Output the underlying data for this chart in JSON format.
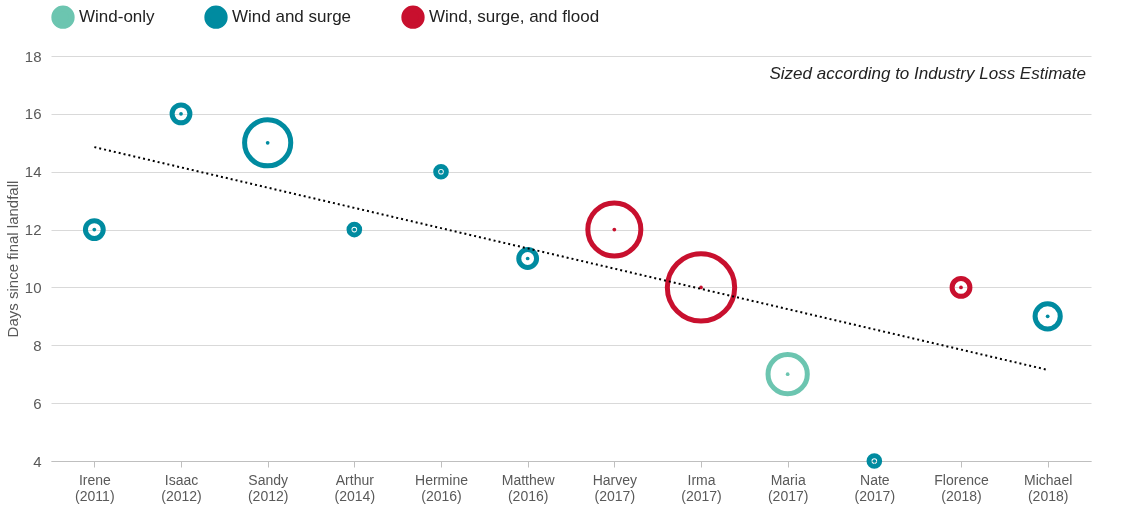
{
  "chart_data": {
    "type": "bubble",
    "ylabel": "Days since final landfall",
    "categories": [
      "Irene (2011)",
      "Isaac (2012)",
      "Sandy (2012)",
      "Arthur (2014)",
      "Hermine (2016)",
      "Matthew (2016)",
      "Harvey (2017)",
      "Irma (2017)",
      "Maria (2017)",
      "Nate (2017)",
      "Florence (2018)",
      "Michael (2018)"
    ],
    "series": [
      {
        "name": "Wind-only",
        "color": "#6cc5b0",
        "values": [
          null,
          null,
          null,
          null,
          null,
          null,
          null,
          null,
          7,
          null,
          null,
          null
        ],
        "sizes": [
          null,
          null,
          null,
          null,
          null,
          null,
          null,
          null,
          0.34,
          null,
          null,
          null
        ]
      },
      {
        "name": "Wind and surge",
        "color": "#008ba0",
        "values": [
          12,
          16,
          15,
          12,
          14,
          11,
          null,
          null,
          null,
          4,
          null,
          9
        ],
        "sizes": [
          0.07,
          0.07,
          0.47,
          0.025,
          0.025,
          0.07,
          null,
          null,
          null,
          0.025,
          null,
          0.14
        ]
      },
      {
        "name": "Wind, surge, and flood",
        "color": "#c8102e",
        "values": [
          null,
          null,
          null,
          null,
          null,
          null,
          12,
          10,
          null,
          null,
          10,
          null
        ],
        "sizes": [
          null,
          null,
          null,
          null,
          null,
          null,
          0.62,
          1,
          null,
          null,
          0.07,
          null
        ]
      },
      {
        "type": "line",
        "color": "#000000",
        "line_style": "dotted",
        "marker": "none",
        "x": [
          "Irene (2011)",
          "Michael (2018)"
        ],
        "values": [
          14.85,
          7.15
        ]
      }
    ],
    "ylim": [
      4,
      18
    ],
    "yticks": [
      4,
      6,
      8,
      10,
      12,
      14,
      16,
      18
    ],
    "grid": "y",
    "legend": "top",
    "annotations": [
      "Sized according to Industry Loss Estimate"
    ]
  }
}
